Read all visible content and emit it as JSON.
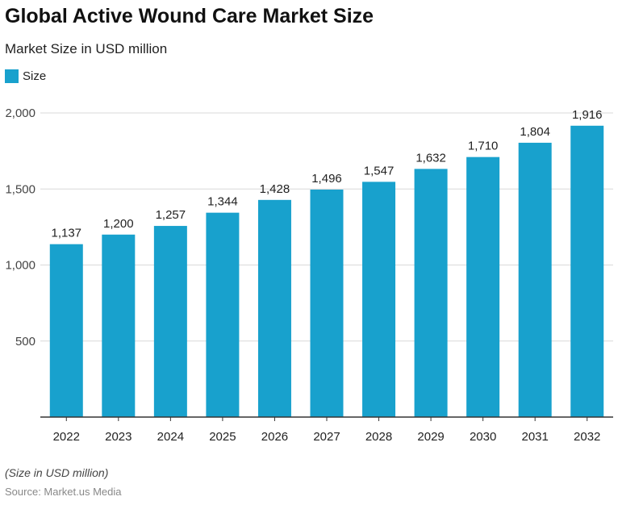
{
  "title": "Global Active Wound Care Market Size",
  "subtitle": "Market Size in USD million",
  "note": "(Size in USD million)",
  "source": "Source: Market.us Media",
  "colors": {
    "bar": "#18a1cd",
    "grid": "#d9d9d9",
    "axis": "#333333"
  },
  "chart_data": {
    "type": "bar",
    "title": "Global Active Wound Care Market Size",
    "subtitle": "Market Size in USD million",
    "categories": [
      "2022",
      "2023",
      "2024",
      "2025",
      "2026",
      "2027",
      "2028",
      "2029",
      "2030",
      "2031",
      "2032"
    ],
    "series": [
      {
        "name": "Size",
        "values": [
          1137,
          1200,
          1257,
          1344,
          1428,
          1496,
          1547,
          1632,
          1710,
          1804,
          1916
        ]
      }
    ],
    "data_labels": [
      "1,137",
      "1,200",
      "1,257",
      "1,344",
      "1,428",
      "1,496",
      "1,547",
      "1,632",
      "1,710",
      "1,804",
      "1,916"
    ],
    "yticks": [
      500,
      1000,
      1500,
      2000
    ],
    "ytick_labels": [
      "500",
      "1,000",
      "1,500",
      "2,000"
    ],
    "ylim": [
      0,
      2000
    ],
    "grid": true,
    "legend": "top-left"
  }
}
